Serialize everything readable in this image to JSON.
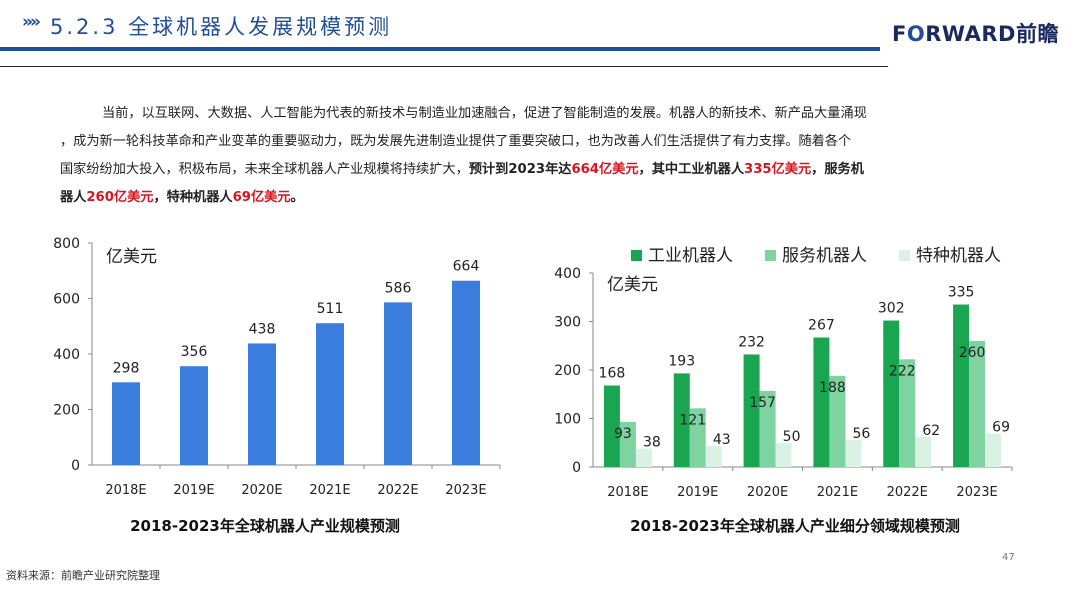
{
  "header": {
    "arrows": "»»",
    "title": "5.2.3 全球机器人发展规模预测"
  },
  "logo": {
    "prefix": "F",
    "o": "O",
    "suffix": "RWARD前瞻"
  },
  "paragraph": {
    "line1": "当前，以互联网、大数据、人工智能为代表的新技术与制造业加速融合，促进了智能制造的发展。机器人的新技术、新产品大量涌现",
    "line2": "，成为新一轮科技革命和产业变革的重要驱动力，既为发展先进制造业提供了重要突破口，也为改善人们生活提供了有力支撑。随着各个",
    "line3_plain": "国家纷纷加大投入，积极布局，未来全球机器人产业规模将持续扩大，",
    "seg1": "预计到2023年达",
    "v1": "664亿美元",
    "seg2": "，其中工业机器人",
    "v2": "335亿美元",
    "seg3": "，服务机",
    "seg4": "器人",
    "v3": "260亿美元",
    "seg5": "，特种机器人",
    "v4": "69亿美元",
    "seg6": "。"
  },
  "chart_data": [
    {
      "type": "bar",
      "title": "2018-2023年全球机器人产业规模预测",
      "unit_label": "亿美元",
      "categories": [
        "2018E",
        "2019E",
        "2020E",
        "2021E",
        "2022E",
        "2023E"
      ],
      "values": [
        298,
        356,
        438,
        511,
        586,
        664
      ],
      "ylim": [
        0,
        800
      ],
      "yticks": [
        0,
        200,
        400,
        600,
        800
      ],
      "color": "#3b7ddd",
      "xlabel": "",
      "ylabel": ""
    },
    {
      "type": "bar",
      "title": "2018-2023年全球机器人产业细分领域规模预测",
      "unit_label": "亿美元",
      "categories": [
        "2018E",
        "2019E",
        "2020E",
        "2021E",
        "2022E",
        "2023E"
      ],
      "series": [
        {
          "name": "工业机器人",
          "values": [
            168,
            193,
            232,
            267,
            302,
            335
          ],
          "color": "#1aa550"
        },
        {
          "name": "服务机器人",
          "values": [
            93,
            121,
            157,
            188,
            222,
            260
          ],
          "color": "#7fd3a0"
        },
        {
          "name": "特种机器人",
          "values": [
            38,
            43,
            50,
            56,
            62,
            69
          ],
          "color": "#d9f2e3"
        }
      ],
      "ylim": [
        0,
        400
      ],
      "yticks": [
        0,
        100,
        200,
        300,
        400
      ],
      "xlabel": "",
      "ylabel": ""
    }
  ],
  "footer": {
    "source": "资料来源：前瞻产业研究院整理",
    "page": "47"
  }
}
